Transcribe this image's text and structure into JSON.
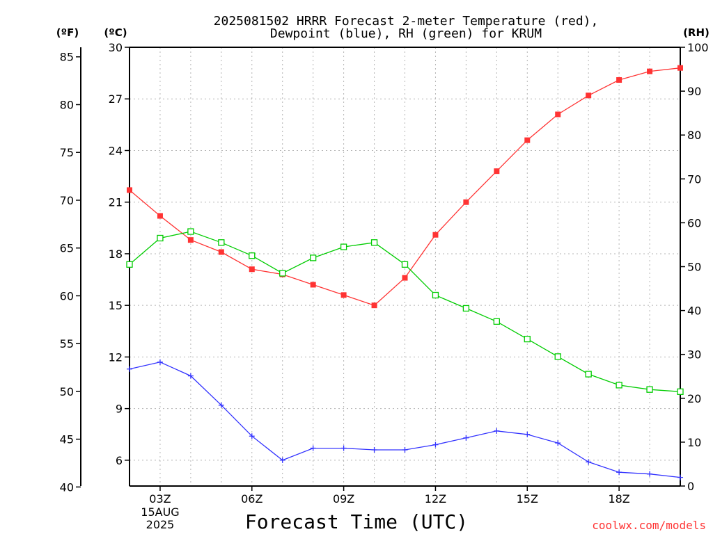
{
  "chart_data": {
    "type": "line",
    "title_line1": "2025081502 HRRR Forecast 2-meter Temperature (red),",
    "title_line2": "Dewpoint (blue), RH (green) for KRUM",
    "xlabel": "Forecast Time (UTC)",
    "date_label_1": "15AUG",
    "date_label_2": "2025",
    "watermark": "coolwx.com/models",
    "left_axis_f_label": "(ºF)",
    "left_axis_c_label": "(ºC)",
    "right_axis_label": "(RH)",
    "x_hours": [
      2,
      3,
      4,
      5,
      6,
      7,
      8,
      9,
      10,
      11,
      12,
      13,
      14,
      15,
      16,
      17,
      18,
      19,
      20
    ],
    "x_ticks": [
      {
        "hour": 3,
        "label": "03Z"
      },
      {
        "hour": 6,
        "label": "06Z"
      },
      {
        "hour": 9,
        "label": "09Z"
      },
      {
        "hour": 12,
        "label": "12Z"
      },
      {
        "hour": 15,
        "label": "15Z"
      },
      {
        "hour": 18,
        "label": "18Z"
      }
    ],
    "xlim": [
      2,
      20
    ],
    "celsius_axis": {
      "ylim": [
        4.5,
        30
      ],
      "ticks": [
        6,
        9,
        12,
        15,
        18,
        21,
        24,
        27,
        30
      ],
      "tick_labels": [
        "6",
        "9",
        "12",
        "15",
        "18",
        "21",
        "24",
        "27",
        "30"
      ]
    },
    "fahrenheit_axis": {
      "ticks": [
        40,
        45,
        50,
        55,
        60,
        65,
        70,
        75,
        80,
        85
      ],
      "tick_labels": [
        "40",
        "45",
        "50",
        "55",
        "60",
        "65",
        "70",
        "75",
        "80",
        "85"
      ]
    },
    "rh_axis": {
      "ylim": [
        0,
        100
      ],
      "ticks": [
        0,
        10,
        20,
        30,
        40,
        50,
        60,
        70,
        80,
        90,
        100
      ],
      "tick_labels": [
        "0",
        "10",
        "20",
        "30",
        "40",
        "50",
        "60",
        "70",
        "80",
        "90",
        "100"
      ]
    },
    "grid": true,
    "series": [
      {
        "name": "Temperature",
        "axis": "celsius",
        "color": "#ff3333",
        "marker": "filled-square",
        "values": [
          21.7,
          20.2,
          18.8,
          18.1,
          17.1,
          16.8,
          16.2,
          15.6,
          15.0,
          16.6,
          19.1,
          21.0,
          22.8,
          24.6,
          26.1,
          27.2,
          28.1,
          28.6,
          28.8
        ]
      },
      {
        "name": "Dewpoint",
        "axis": "celsius",
        "color": "#3333ff",
        "marker": "plus",
        "values": [
          11.3,
          11.7,
          10.9,
          9.2,
          7.4,
          6.0,
          6.7,
          6.7,
          6.6,
          6.6,
          6.9,
          7.3,
          7.7,
          7.5,
          7.0,
          5.9,
          5.3,
          5.2,
          5.0
        ]
      },
      {
        "name": "RH",
        "axis": "rh",
        "color": "#00cc00",
        "marker": "open-square",
        "values": [
          50.5,
          56.5,
          58.0,
          55.5,
          52.5,
          48.5,
          52.0,
          54.5,
          55.5,
          50.5,
          43.5,
          40.5,
          37.5,
          33.5,
          29.5,
          25.5,
          23.0,
          22.0,
          21.5
        ]
      }
    ]
  }
}
